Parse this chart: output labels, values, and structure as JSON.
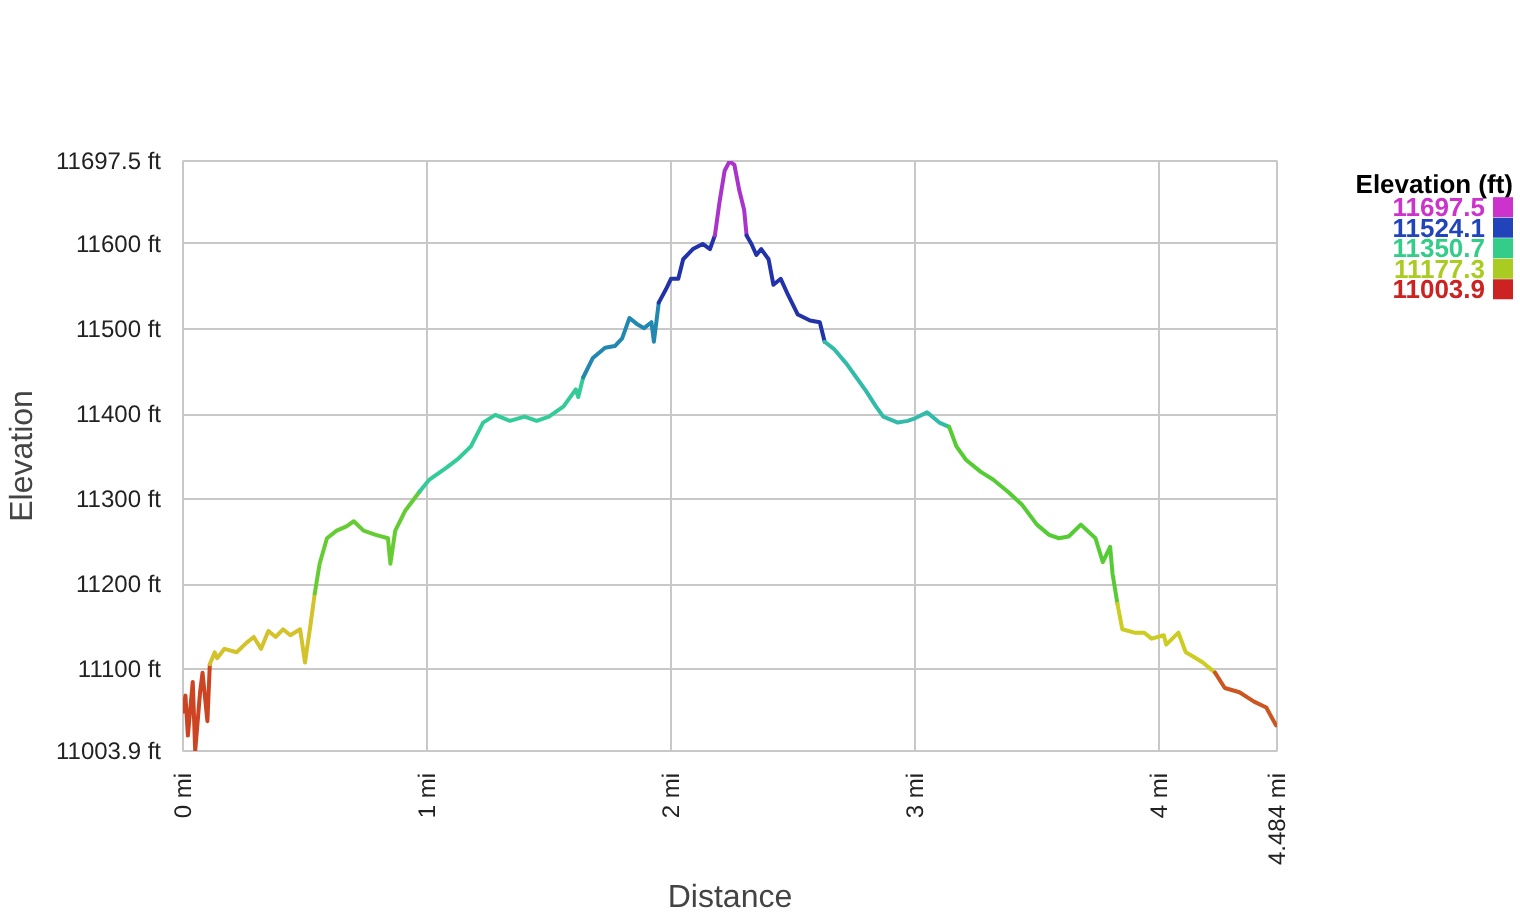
{
  "chart_data": {
    "type": "line",
    "xlabel": "Distance",
    "ylabel": "Elevation",
    "grid": true,
    "xlim": [
      0,
      4.484
    ],
    "ylim": [
      11003.9,
      11697.5
    ],
    "xticks": [
      {
        "value": 0,
        "label": "0 mi"
      },
      {
        "value": 1,
        "label": "1 mi"
      },
      {
        "value": 2,
        "label": "2 mi"
      },
      {
        "value": 3,
        "label": "3 mi"
      },
      {
        "value": 4,
        "label": "4 mi"
      },
      {
        "value": 4.484,
        "label": "4.484 mi"
      }
    ],
    "yticks": [
      {
        "value": 11003.9,
        "label": "11003.9 ft"
      },
      {
        "value": 11100,
        "label": "11100 ft"
      },
      {
        "value": 11200,
        "label": "11200 ft"
      },
      {
        "value": 11300,
        "label": "11300 ft"
      },
      {
        "value": 11400,
        "label": "11400 ft"
      },
      {
        "value": 11500,
        "label": "11500 ft"
      },
      {
        "value": 11600,
        "label": "11600 ft"
      },
      {
        "value": 11697.5,
        "label": "11697.5 ft"
      }
    ],
    "clabel": "Elevation (ft)",
    "cticks": [
      11697.5,
      11524.1,
      11350.7,
      11177.3,
      11003.9
    ],
    "colors": [
      "#cc33cc",
      "#2244bb",
      "#33cc88",
      "#aacc22",
      "#cc2222"
    ],
    "series": [
      {
        "color": "#cc4422",
        "x": [
          0,
          0.01,
          0.02,
          0.04,
          0.05,
          0.07,
          0.08,
          0.1,
          0.11
        ],
        "values": [
          11050,
          11069,
          11022,
          11085,
          11004,
          11073,
          11096,
          11039,
          11106
        ]
      },
      {
        "color": "#d4c22a",
        "x": [
          0.11,
          0.13,
          0.14,
          0.17,
          0.22,
          0.26,
          0.29,
          0.32,
          0.35,
          0.38,
          0.41,
          0.44,
          0.48,
          0.5,
          0.52,
          0.54
        ],
        "values": [
          11106,
          11120,
          11113,
          11124,
          11120,
          11131,
          11138,
          11124,
          11145,
          11138,
          11147,
          11140,
          11147,
          11108,
          11147,
          11189
        ]
      },
      {
        "color": "#66cc33",
        "x": [
          0.54,
          0.56,
          0.59,
          0.63,
          0.67,
          0.7,
          0.74,
          0.79,
          0.84,
          0.85,
          0.87,
          0.91,
          0.97
        ],
        "values": [
          11189,
          11224,
          11254,
          11263,
          11268,
          11274,
          11263,
          11258,
          11254,
          11224,
          11263,
          11286,
          11309
        ]
      },
      {
        "color": "#33cc99",
        "x": [
          0.97,
          1.01,
          1.08,
          1.13,
          1.18,
          1.23,
          1.28,
          1.34,
          1.4,
          1.45,
          1.5,
          1.56,
          1.61,
          1.62,
          1.64
        ],
        "values": [
          11309,
          11323,
          11337,
          11348,
          11362,
          11390,
          11399,
          11392,
          11397,
          11392,
          11397,
          11409,
          11429,
          11420,
          11443
        ]
      },
      {
        "color": "#2288b0",
        "x": [
          1.64,
          1.68,
          1.73,
          1.77,
          1.8,
          1.83,
          1.86,
          1.89,
          1.92,
          1.93,
          1.95
        ],
        "values": [
          11443,
          11466,
          11478,
          11480,
          11489,
          11513,
          11506,
          11501,
          11508,
          11485,
          11531
        ]
      },
      {
        "color": "#2233aa",
        "x": [
          1.95,
          1.98,
          2.0,
          2.03,
          2.05,
          2.09,
          2.13,
          2.16,
          2.18
        ],
        "values": [
          11531,
          11547,
          11559,
          11559,
          11582,
          11594,
          11600,
          11594,
          11610
        ]
      },
      {
        "color": "#aa33cc",
        "x": [
          2.18,
          2.2,
          2.22,
          2.24,
          2.26,
          2.28,
          2.3,
          2.31
        ],
        "values": [
          11610,
          11651,
          11686,
          11697,
          11693,
          11663,
          11640,
          11610
        ]
      },
      {
        "color": "#2233aa",
        "x": [
          2.31,
          2.33,
          2.35,
          2.37,
          2.4,
          2.42,
          2.45,
          2.48,
          2.52,
          2.57,
          2.61,
          2.63
        ],
        "values": [
          11610,
          11600,
          11587,
          11594,
          11582,
          11552,
          11559,
          11540,
          11517,
          11510,
          11508,
          11485
        ]
      },
      {
        "color": "#33bbaa",
        "x": [
          2.63,
          2.67,
          2.72,
          2.76,
          2.8,
          2.84,
          2.87,
          2.93,
          2.97,
          3.0,
          3.05,
          3.1,
          3.14
        ],
        "values": [
          11485,
          11476,
          11459,
          11443,
          11427,
          11409,
          11397,
          11390,
          11392,
          11395,
          11402,
          11390,
          11385
        ]
      },
      {
        "color": "#55cc33",
        "x": [
          3.14,
          3.17,
          3.21,
          3.27,
          3.32,
          3.38,
          3.44,
          3.5,
          3.55,
          3.59,
          3.63,
          3.68,
          3.74,
          3.77,
          3.8,
          3.81,
          3.83
        ],
        "values": [
          11385,
          11362,
          11346,
          11332,
          11323,
          11309,
          11293,
          11270,
          11258,
          11254,
          11256,
          11270,
          11254,
          11226,
          11244,
          11212,
          11177
        ]
      },
      {
        "color": "#cccc22",
        "x": [
          3.83,
          3.85,
          3.9,
          3.94,
          3.97,
          4.02,
          4.03,
          4.08,
          4.11,
          4.14,
          4.18,
          4.23
        ],
        "values": [
          11177,
          11147,
          11143,
          11143,
          11136,
          11140,
          11129,
          11143,
          11120,
          11115,
          11108,
          11096
        ]
      },
      {
        "color": "#cc5522",
        "x": [
          4.23,
          4.27,
          4.33,
          4.39,
          4.44,
          4.48
        ],
        "values": [
          11096,
          11078,
          11073,
          11062,
          11055,
          11034
        ]
      }
    ]
  }
}
